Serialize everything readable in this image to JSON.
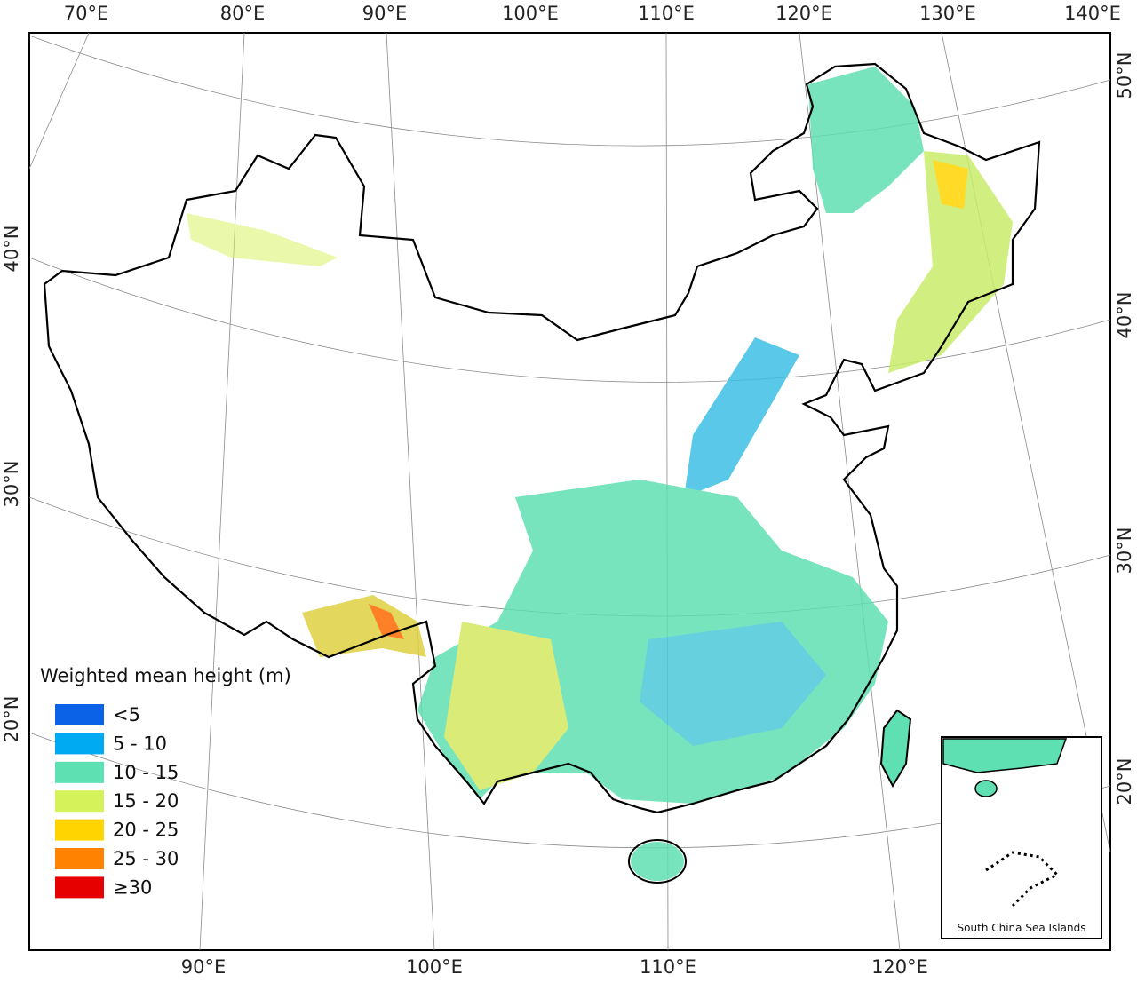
{
  "top_labels": [
    "70°E",
    "80°E",
    "90°E",
    "100°E",
    "110°E",
    "120°E",
    "130°E",
    "140°E"
  ],
  "bottom_labels": [
    "90°E",
    "100°E",
    "110°E",
    "120°E"
  ],
  "left_labels": [
    "40°N",
    "30°N",
    "20°N"
  ],
  "right_labels": [
    "50°N",
    "40°N",
    "30°N",
    "20°N"
  ],
  "legend": {
    "title": "Weighted mean height (m)",
    "items": [
      {
        "label": "<5",
        "color": "#0b62e6"
      },
      {
        "label": "5 - 10",
        "color": "#00aaf2"
      },
      {
        "label": "10 - 15",
        "color": "#5fe0b2"
      },
      {
        "label": "15 - 20",
        "color": "#d5f25a"
      },
      {
        "label": "20 - 25",
        "color": "#ffd400"
      },
      {
        "label": "25 - 30",
        "color": "#ff8200"
      },
      {
        "label": "≥30",
        "color": "#e60000"
      }
    ]
  },
  "inset": {
    "label": "South China Sea Islands"
  }
}
